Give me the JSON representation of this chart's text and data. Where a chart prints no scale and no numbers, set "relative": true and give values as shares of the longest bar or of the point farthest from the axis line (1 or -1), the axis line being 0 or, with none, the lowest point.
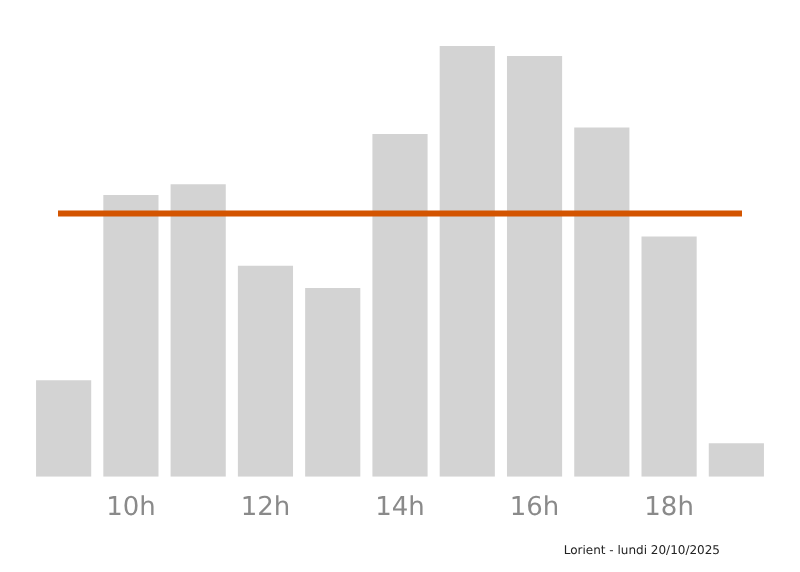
{
  "chart_data": {
    "type": "bar",
    "relative": true,
    "categories": [
      null,
      "10h",
      null,
      "12h",
      null,
      "14h",
      null,
      "16h",
      null,
      "18h",
      null
    ],
    "values": [
      0.224,
      0.654,
      0.679,
      0.49,
      0.438,
      0.796,
      1,
      0.977,
      0.811,
      0.558,
      0.078
    ],
    "color": "#d3d3d3",
    "grid": false,
    "legend": false,
    "ref_lines": [
      {
        "axis": "y",
        "value": 0.611,
        "color": "#d35400"
      }
    ],
    "annotations": [
      "Lorient - lundi 20/10/2025"
    ]
  }
}
